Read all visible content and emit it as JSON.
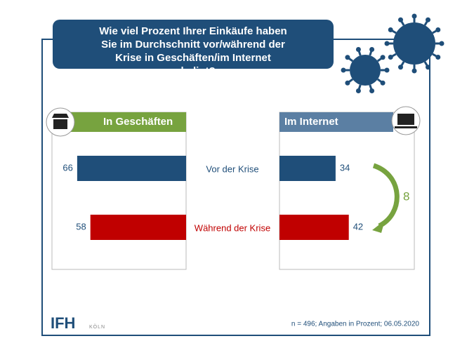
{
  "chart_data": {
    "type": "bar",
    "title": "Wie viel Prozent Ihrer Einkäufe haben Sie im Durchschnitt vor/während der Krise in Geschäften/im Internet erledigt?",
    "categories": [
      "Vor der Krise",
      "Während der Krise"
    ],
    "category_colors": [
      "#1f4e79",
      "#c00000"
    ],
    "series": [
      {
        "name": "In Geschäften",
        "color": "#77a33f",
        "values": [
          66,
          58
        ]
      },
      {
        "name": "Im Internet",
        "color": "#5b7fa3",
        "values": [
          34,
          42
        ]
      }
    ],
    "change": 8,
    "change_color": "#77a33f",
    "note": "n = 496; Angaben in Prozent; 06.05.2020"
  },
  "brand": {
    "name": "IFH",
    "sub": "KÖLN"
  }
}
